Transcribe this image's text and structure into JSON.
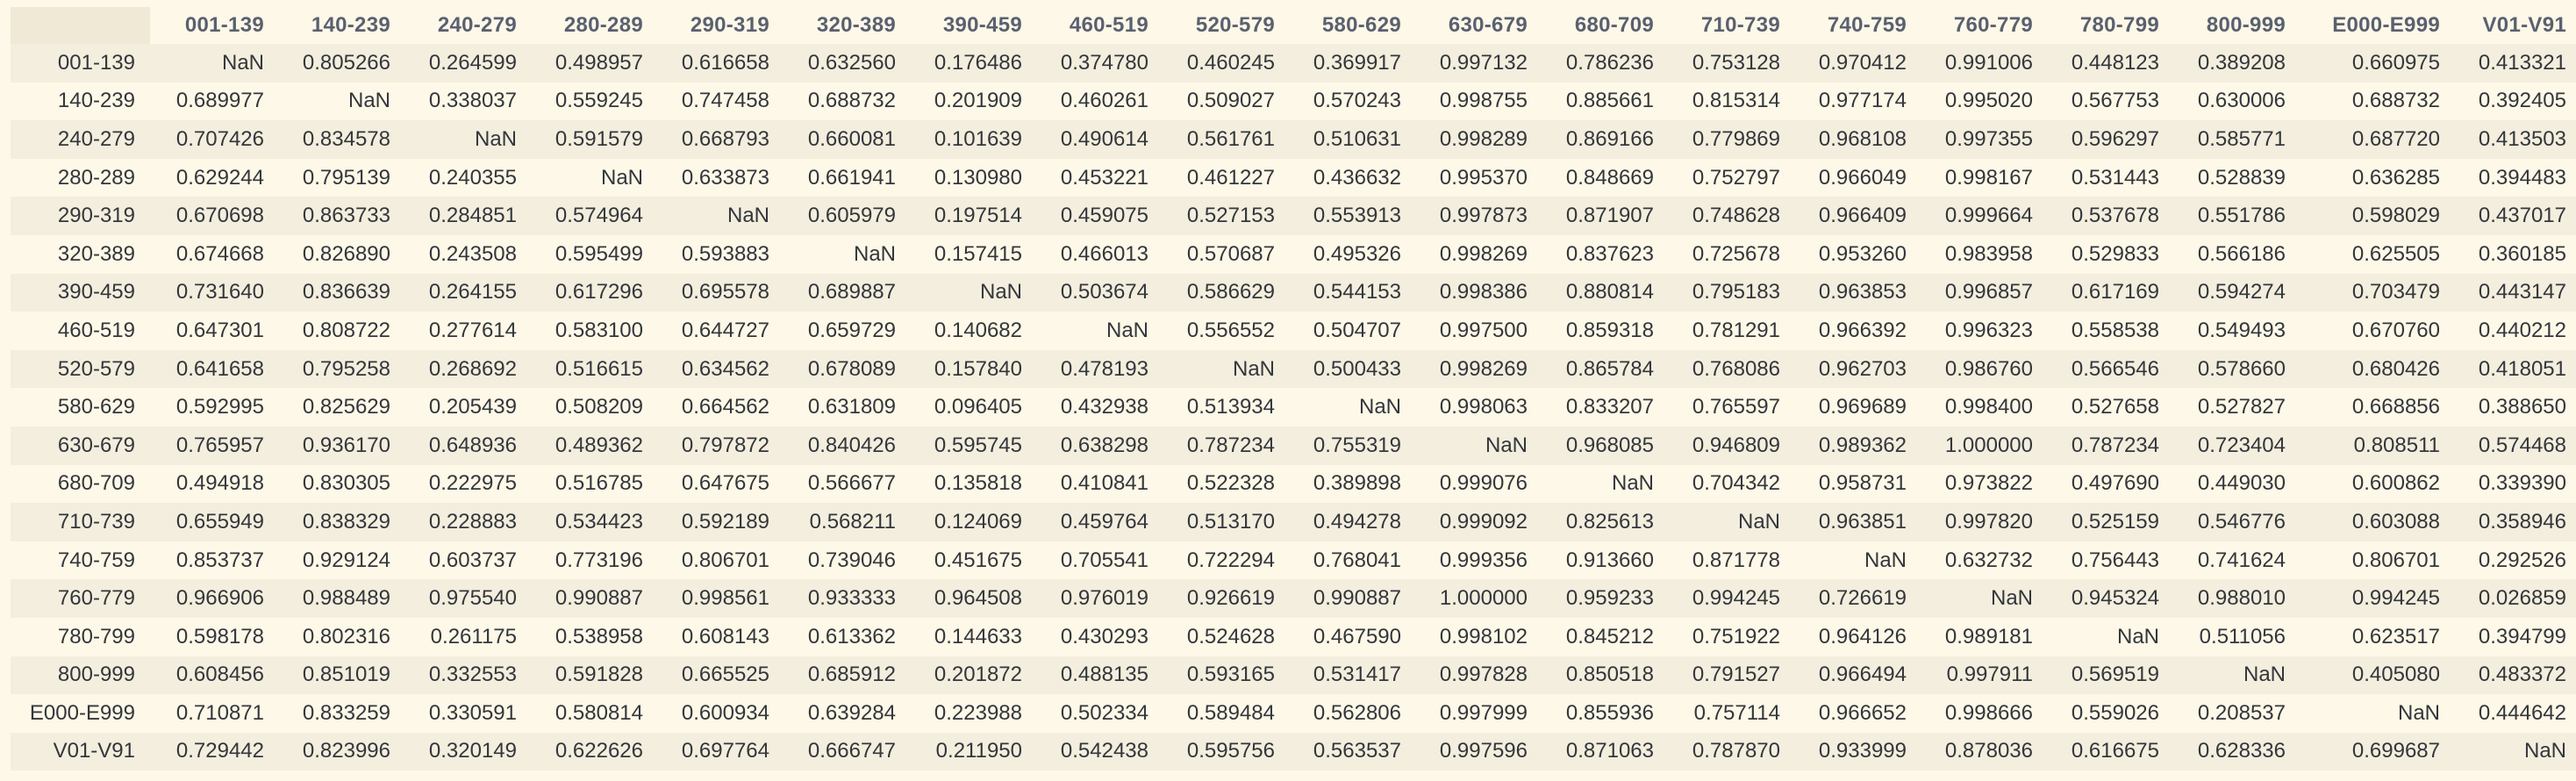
{
  "table": {
    "columns": [
      "001-139",
      "140-239",
      "240-279",
      "280-289",
      "290-319",
      "320-389",
      "390-459",
      "460-519",
      "520-579",
      "580-629",
      "630-679",
      "680-709",
      "710-739",
      "740-759",
      "760-779",
      "780-799",
      "800-999",
      "E000-E999",
      "V01-V91"
    ],
    "rows": [
      {
        "label": "001-139",
        "values": [
          "NaN",
          "0.805266",
          "0.264599",
          "0.498957",
          "0.616658",
          "0.632560",
          "0.176486",
          "0.374780",
          "0.460245",
          "0.369917",
          "0.997132",
          "0.786236",
          "0.753128",
          "0.970412",
          "0.991006",
          "0.448123",
          "0.389208",
          "0.660975",
          "0.413321"
        ]
      },
      {
        "label": "140-239",
        "values": [
          "0.689977",
          "NaN",
          "0.338037",
          "0.559245",
          "0.747458",
          "0.688732",
          "0.201909",
          "0.460261",
          "0.509027",
          "0.570243",
          "0.998755",
          "0.885661",
          "0.815314",
          "0.977174",
          "0.995020",
          "0.567753",
          "0.630006",
          "0.688732",
          "0.392405"
        ]
      },
      {
        "label": "240-279",
        "values": [
          "0.707426",
          "0.834578",
          "NaN",
          "0.591579",
          "0.668793",
          "0.660081",
          "0.101639",
          "0.490614",
          "0.561761",
          "0.510631",
          "0.998289",
          "0.869166",
          "0.779869",
          "0.968108",
          "0.997355",
          "0.596297",
          "0.585771",
          "0.687720",
          "0.413503"
        ]
      },
      {
        "label": "280-289",
        "values": [
          "0.629244",
          "0.795139",
          "0.240355",
          "NaN",
          "0.633873",
          "0.661941",
          "0.130980",
          "0.453221",
          "0.461227",
          "0.436632",
          "0.995370",
          "0.848669",
          "0.752797",
          "0.966049",
          "0.998167",
          "0.531443",
          "0.528839",
          "0.636285",
          "0.394483"
        ]
      },
      {
        "label": "290-319",
        "values": [
          "0.670698",
          "0.863733",
          "0.284851",
          "0.574964",
          "NaN",
          "0.605979",
          "0.197514",
          "0.459075",
          "0.527153",
          "0.553913",
          "0.997873",
          "0.871907",
          "0.748628",
          "0.966409",
          "0.999664",
          "0.537678",
          "0.551786",
          "0.598029",
          "0.437017"
        ]
      },
      {
        "label": "320-389",
        "values": [
          "0.674668",
          "0.826890",
          "0.243508",
          "0.595499",
          "0.593883",
          "NaN",
          "0.157415",
          "0.466013",
          "0.570687",
          "0.495326",
          "0.998269",
          "0.837623",
          "0.725678",
          "0.953260",
          "0.983958",
          "0.529833",
          "0.566186",
          "0.625505",
          "0.360185"
        ]
      },
      {
        "label": "390-459",
        "values": [
          "0.731640",
          "0.836639",
          "0.264155",
          "0.617296",
          "0.695578",
          "0.689887",
          "NaN",
          "0.503674",
          "0.586629",
          "0.544153",
          "0.998386",
          "0.880814",
          "0.795183",
          "0.963853",
          "0.996857",
          "0.617169",
          "0.594274",
          "0.703479",
          "0.443147"
        ]
      },
      {
        "label": "460-519",
        "values": [
          "0.647301",
          "0.808722",
          "0.277614",
          "0.583100",
          "0.644727",
          "0.659729",
          "0.140682",
          "NaN",
          "0.556552",
          "0.504707",
          "0.997500",
          "0.859318",
          "0.781291",
          "0.966392",
          "0.996323",
          "0.558538",
          "0.549493",
          "0.670760",
          "0.440212"
        ]
      },
      {
        "label": "520-579",
        "values": [
          "0.641658",
          "0.795258",
          "0.268692",
          "0.516615",
          "0.634562",
          "0.678089",
          "0.157840",
          "0.478193",
          "NaN",
          "0.500433",
          "0.998269",
          "0.865784",
          "0.768086",
          "0.962703",
          "0.986760",
          "0.566546",
          "0.578660",
          "0.680426",
          "0.418051"
        ]
      },
      {
        "label": "580-629",
        "values": [
          "0.592995",
          "0.825629",
          "0.205439",
          "0.508209",
          "0.664562",
          "0.631809",
          "0.096405",
          "0.432938",
          "0.513934",
          "NaN",
          "0.998063",
          "0.833207",
          "0.765597",
          "0.969689",
          "0.998400",
          "0.527658",
          "0.527827",
          "0.668856",
          "0.388650"
        ]
      },
      {
        "label": "630-679",
        "values": [
          "0.765957",
          "0.936170",
          "0.648936",
          "0.489362",
          "0.797872",
          "0.840426",
          "0.595745",
          "0.638298",
          "0.787234",
          "0.755319",
          "NaN",
          "0.968085",
          "0.946809",
          "0.989362",
          "1.000000",
          "0.787234",
          "0.723404",
          "0.808511",
          "0.574468"
        ]
      },
      {
        "label": "680-709",
        "values": [
          "0.494918",
          "0.830305",
          "0.222975",
          "0.516785",
          "0.647675",
          "0.566677",
          "0.135818",
          "0.410841",
          "0.522328",
          "0.389898",
          "0.999076",
          "NaN",
          "0.704342",
          "0.958731",
          "0.973822",
          "0.497690",
          "0.449030",
          "0.600862",
          "0.339390"
        ]
      },
      {
        "label": "710-739",
        "values": [
          "0.655949",
          "0.838329",
          "0.228883",
          "0.534423",
          "0.592189",
          "0.568211",
          "0.124069",
          "0.459764",
          "0.513170",
          "0.494278",
          "0.999092",
          "0.825613",
          "NaN",
          "0.963851",
          "0.997820",
          "0.525159",
          "0.546776",
          "0.603088",
          "0.358946"
        ]
      },
      {
        "label": "740-759",
        "values": [
          "0.853737",
          "0.929124",
          "0.603737",
          "0.773196",
          "0.806701",
          "0.739046",
          "0.451675",
          "0.705541",
          "0.722294",
          "0.768041",
          "0.999356",
          "0.913660",
          "0.871778",
          "NaN",
          "0.632732",
          "0.756443",
          "0.741624",
          "0.806701",
          "0.292526"
        ]
      },
      {
        "label": "760-779",
        "values": [
          "0.966906",
          "0.988489",
          "0.975540",
          "0.990887",
          "0.998561",
          "0.933333",
          "0.964508",
          "0.976019",
          "0.926619",
          "0.990887",
          "1.000000",
          "0.959233",
          "0.994245",
          "0.726619",
          "NaN",
          "0.945324",
          "0.988010",
          "0.994245",
          "0.026859"
        ]
      },
      {
        "label": "780-799",
        "values": [
          "0.598178",
          "0.802316",
          "0.261175",
          "0.538958",
          "0.608143",
          "0.613362",
          "0.144633",
          "0.430293",
          "0.524628",
          "0.467590",
          "0.998102",
          "0.845212",
          "0.751922",
          "0.964126",
          "0.989181",
          "NaN",
          "0.511056",
          "0.623517",
          "0.394799"
        ]
      },
      {
        "label": "800-999",
        "values": [
          "0.608456",
          "0.851019",
          "0.332553",
          "0.591828",
          "0.665525",
          "0.685912",
          "0.201872",
          "0.488135",
          "0.593165",
          "0.531417",
          "0.997828",
          "0.850518",
          "0.791527",
          "0.966494",
          "0.997911",
          "0.569519",
          "NaN",
          "0.405080",
          "0.483372"
        ]
      },
      {
        "label": "E000-E999",
        "values": [
          "0.710871",
          "0.833259",
          "0.330591",
          "0.580814",
          "0.600934",
          "0.639284",
          "0.223988",
          "0.502334",
          "0.589484",
          "0.562806",
          "0.997999",
          "0.855936",
          "0.757114",
          "0.966652",
          "0.998666",
          "0.559026",
          "0.208537",
          "NaN",
          "0.444642"
        ]
      },
      {
        "label": "V01-V91",
        "values": [
          "0.729442",
          "0.823996",
          "0.320149",
          "0.622626",
          "0.697764",
          "0.666747",
          "0.211950",
          "0.542438",
          "0.595756",
          "0.563537",
          "0.997596",
          "0.871063",
          "0.787870",
          "0.933999",
          "0.878036",
          "0.616675",
          "0.628336",
          "0.699687",
          "NaN"
        ]
      }
    ]
  }
}
